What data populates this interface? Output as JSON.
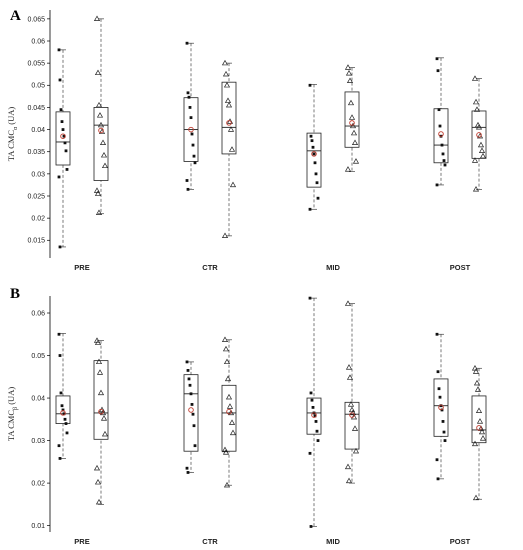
{
  "chart_data": [
    {
      "type": "box",
      "panel_label": "A",
      "ylabel": "TA CMC",
      "ylabel_sub": "α",
      "ylabel_unit": "(UA)",
      "ylim": [
        0.011,
        0.067
      ],
      "yticks": [
        0.015,
        0.02,
        0.025,
        0.03,
        0.035,
        0.04,
        0.045,
        0.05,
        0.055,
        0.06,
        0.065
      ],
      "ytick_labels": [
        "0.015",
        "0.02",
        "0.025",
        "0.03",
        "0.035",
        "0.04",
        "0.045",
        "0.05",
        "0.055",
        "0.06",
        "0.065"
      ],
      "categories": [
        "PRE",
        "CTR",
        "MID",
        "POST"
      ],
      "series": [
        {
          "marker": "square",
          "box": [
            {
              "min": 0.0135,
              "q1": 0.032,
              "median": 0.0372,
              "q3": 0.044,
              "max": 0.058,
              "mean": 0.0385,
              "points": [
                0.058,
                0.0512,
                0.0445,
                0.0418,
                0.04,
                0.0385,
                0.037,
                0.0352,
                0.031,
                0.0293,
                0.0135
              ]
            },
            {
              "min": 0.0265,
              "q1": 0.0328,
              "median": 0.04,
              "q3": 0.0472,
              "max": 0.0595,
              "mean": 0.04,
              "points": [
                0.0595,
                0.0483,
                0.0473,
                0.045,
                0.0427,
                0.039,
                0.0365,
                0.034,
                0.0325,
                0.0285,
                0.0265
              ]
            },
            {
              "min": 0.022,
              "q1": 0.027,
              "median": 0.0352,
              "q3": 0.0392,
              "max": 0.0502,
              "mean": 0.0345,
              "points": [
                0.05,
                0.0385,
                0.0375,
                0.036,
                0.0345,
                0.0325,
                0.03,
                0.028,
                0.0245,
                0.022
              ]
            },
            {
              "min": 0.0275,
              "q1": 0.0325,
              "median": 0.0365,
              "q3": 0.0447,
              "max": 0.0562,
              "mean": 0.039,
              "points": [
                0.056,
                0.0533,
                0.0445,
                0.0408,
                0.0385,
                0.0365,
                0.0345,
                0.033,
                0.032,
                0.0275
              ]
            }
          ]
        },
        {
          "marker": "triangle",
          "box": [
            {
              "min": 0.021,
              "q1": 0.0285,
              "median": 0.041,
              "q3": 0.045,
              "max": 0.065,
              "mean": 0.0398,
              "points": [
                0.065,
                0.0528,
                0.0455,
                0.0432,
                0.041,
                0.0395,
                0.037,
                0.0342,
                0.0318,
                0.0262,
                0.0255,
                0.0212
              ]
            },
            {
              "min": 0.016,
              "q1": 0.0345,
              "median": 0.0405,
              "q3": 0.0507,
              "max": 0.055,
              "mean": 0.0415,
              "points": [
                0.055,
                0.0525,
                0.05,
                0.0465,
                0.0455,
                0.0418,
                0.04,
                0.0355,
                0.0275,
                0.016
              ]
            },
            {
              "min": 0.0305,
              "q1": 0.036,
              "median": 0.0408,
              "q3": 0.0485,
              "max": 0.054,
              "mean": 0.0415,
              "points": [
                0.054,
                0.0527,
                0.051,
                0.046,
                0.0427,
                0.0408,
                0.0392,
                0.037,
                0.0328,
                0.031
              ]
            },
            {
              "min": 0.0265,
              "q1": 0.0335,
              "median": 0.0405,
              "q3": 0.0442,
              "max": 0.0515,
              "mean": 0.0388,
              "points": [
                0.0515,
                0.0462,
                0.0445,
                0.041,
                0.0405,
                0.0385,
                0.0365,
                0.0352,
                0.034,
                0.033,
                0.0265
              ]
            }
          ]
        }
      ]
    },
    {
      "type": "box",
      "panel_label": "B",
      "ylabel": "TA CMC",
      "ylabel_sub": "β",
      "ylabel_unit": "(UA)",
      "ylim": [
        0.0085,
        0.064
      ],
      "yticks": [
        0.01,
        0.02,
        0.03,
        0.04,
        0.05,
        0.06
      ],
      "ytick_labels": [
        "0.01",
        "0.02",
        "0.03",
        "0.04",
        "0.05",
        "0.06"
      ],
      "categories": [
        "PRE",
        "CTR",
        "MID",
        "POST"
      ],
      "series": [
        {
          "marker": "square",
          "box": [
            {
              "min": 0.0258,
              "q1": 0.034,
              "median": 0.0363,
              "q3": 0.0405,
              "max": 0.0552,
              "mean": 0.0365,
              "points": [
                0.055,
                0.05,
                0.0412,
                0.0382,
                0.0372,
                0.0363,
                0.035,
                0.034,
                0.0318,
                0.0288,
                0.0258
              ]
            },
            {
              "min": 0.0225,
              "q1": 0.0275,
              "median": 0.041,
              "q3": 0.0455,
              "max": 0.0485,
              "mean": 0.0372,
              "points": [
                0.0485,
                0.0465,
                0.0445,
                0.043,
                0.041,
                0.0385,
                0.0362,
                0.0335,
                0.0288,
                0.0235,
                0.0225
              ]
            },
            {
              "min": 0.0098,
              "q1": 0.0315,
              "median": 0.0365,
              "q3": 0.04,
              "max": 0.0635,
              "mean": 0.036,
              "points": [
                0.0635,
                0.0412,
                0.0395,
                0.0378,
                0.0365,
                0.0358,
                0.0345,
                0.0322,
                0.03,
                0.027,
                0.0098
              ]
            },
            {
              "min": 0.021,
              "q1": 0.031,
              "median": 0.0382,
              "q3": 0.0445,
              "max": 0.055,
              "mean": 0.0378,
              "points": [
                0.055,
                0.0462,
                0.0422,
                0.0402,
                0.0382,
                0.0372,
                0.0345,
                0.032,
                0.03,
                0.0255,
                0.021
              ]
            }
          ]
        },
        {
          "marker": "triangle",
          "box": [
            {
              "min": 0.015,
              "q1": 0.0303,
              "median": 0.0365,
              "q3": 0.0488,
              "max": 0.0535,
              "mean": 0.0368,
              "points": [
                0.0535,
                0.053,
                0.0485,
                0.046,
                0.0412,
                0.0372,
                0.0365,
                0.0352,
                0.0315,
                0.0235,
                0.0202,
                0.0155
              ]
            },
            {
              "min": 0.0195,
              "q1": 0.0275,
              "median": 0.0365,
              "q3": 0.043,
              "max": 0.0537,
              "mean": 0.0368,
              "points": [
                0.0537,
                0.0515,
                0.0485,
                0.0445,
                0.0402,
                0.038,
                0.0365,
                0.0342,
                0.0318,
                0.0278,
                0.0272,
                0.0195
              ]
            },
            {
              "min": 0.02,
              "q1": 0.028,
              "median": 0.0362,
              "q3": 0.039,
              "max": 0.0622,
              "mean": 0.036,
              "points": [
                0.0622,
                0.0472,
                0.0448,
                0.0385,
                0.0372,
                0.0365,
                0.0355,
                0.0328,
                0.0275,
                0.0238,
                0.0205
              ]
            },
            {
              "min": 0.0162,
              "q1": 0.0295,
              "median": 0.0325,
              "q3": 0.0405,
              "max": 0.047,
              "mean": 0.033,
              "points": [
                0.047,
                0.0462,
                0.0435,
                0.042,
                0.037,
                0.0345,
                0.0328,
                0.032,
                0.0305,
                0.0292,
                0.0165
              ]
            }
          ]
        }
      ]
    }
  ]
}
